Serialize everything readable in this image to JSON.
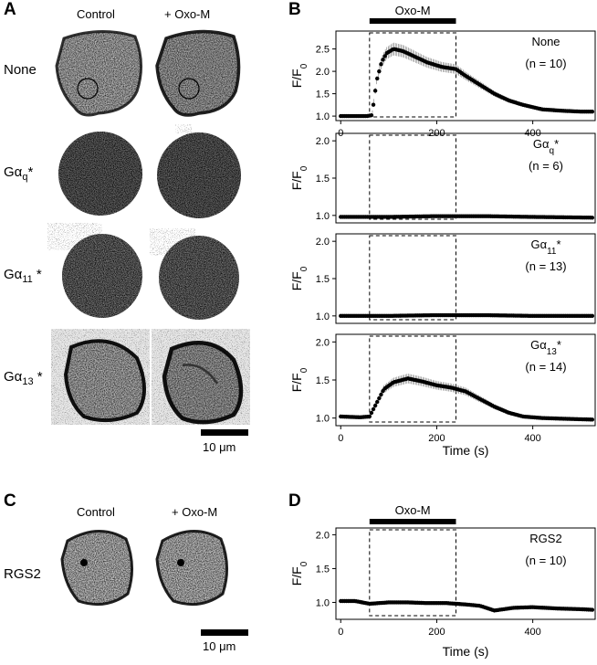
{
  "panels": {
    "A": {
      "letter": "A",
      "columns": [
        "Control",
        "+ Oxo-M"
      ],
      "rows": [
        {
          "label_main": "None",
          "label_sub": ""
        },
        {
          "label_main": "Gα",
          "label_sub": "q",
          "label_star": "*"
        },
        {
          "label_main": "Gα",
          "label_sub": "11",
          "label_star": " *"
        },
        {
          "label_main": "Gα",
          "label_sub": "13",
          "label_star": " *"
        }
      ],
      "scale_label": "10 μm"
    },
    "B": {
      "letter": "B",
      "stim_label": "Oxo-M",
      "ylabel": "F/F",
      "ylabel_sub": "0",
      "xlabel": "Time (s)"
    },
    "C": {
      "letter": "C",
      "columns": [
        "Control",
        "+ Oxo-M"
      ],
      "row_label": "RGS2",
      "scale_label": "10 μm"
    },
    "D": {
      "letter": "D",
      "stim_label": "Oxo-M",
      "ylabel": "F/F",
      "ylabel_sub": "0",
      "xlabel": "Time (s)"
    }
  },
  "chart_data": [
    {
      "type": "scatter",
      "panel": "B",
      "annotation": "None",
      "n_label": "(n = 10)",
      "ylim": [
        0.9,
        2.9
      ],
      "yticks": [
        1.0,
        1.5,
        2.0,
        2.5
      ],
      "xlim": [
        -10,
        530
      ],
      "xticks": [
        0,
        200,
        400
      ],
      "stim": [
        60,
        240
      ],
      "points": [
        [
          0,
          1.0
        ],
        [
          30,
          1.0
        ],
        [
          55,
          1.0
        ],
        [
          65,
          1.02
        ],
        [
          75,
          1.8
        ],
        [
          85,
          2.2
        ],
        [
          95,
          2.4
        ],
        [
          110,
          2.5
        ],
        [
          130,
          2.45
        ],
        [
          150,
          2.35
        ],
        [
          180,
          2.2
        ],
        [
          210,
          2.1
        ],
        [
          240,
          2.05
        ],
        [
          260,
          1.9
        ],
        [
          290,
          1.7
        ],
        [
          320,
          1.5
        ],
        [
          350,
          1.35
        ],
        [
          380,
          1.25
        ],
        [
          420,
          1.15
        ],
        [
          460,
          1.12
        ],
        [
          500,
          1.1
        ],
        [
          525,
          1.1
        ]
      ]
    },
    {
      "type": "scatter",
      "panel": "B",
      "annotation": "Gα",
      "annotation_sub": "q",
      "annotation_star": "*",
      "n_label": "(n = 6)",
      "ylim": [
        0.9,
        2.1
      ],
      "yticks": [
        1.0,
        1.5,
        2.0
      ],
      "xlim": [
        -10,
        530
      ],
      "stim": [
        60,
        240
      ],
      "points": [
        [
          0,
          0.98
        ],
        [
          100,
          0.98
        ],
        [
          200,
          0.99
        ],
        [
          300,
          0.99
        ],
        [
          400,
          0.98
        ],
        [
          525,
          0.97
        ]
      ]
    },
    {
      "type": "scatter",
      "panel": "B",
      "annotation": "Gα",
      "annotation_sub": "11",
      "annotation_star": "*",
      "n_label": "(n = 13)",
      "ylim": [
        0.9,
        2.1
      ],
      "yticks": [
        1.0,
        1.5,
        2.0
      ],
      "xlim": [
        -10,
        530
      ],
      "stim": [
        60,
        240
      ],
      "points": [
        [
          0,
          1.0
        ],
        [
          100,
          1.0
        ],
        [
          200,
          1.01
        ],
        [
          300,
          1.01
        ],
        [
          400,
          1.0
        ],
        [
          525,
          1.0
        ]
      ]
    },
    {
      "type": "scatter",
      "panel": "B",
      "annotation": "Gα",
      "annotation_sub": "13",
      "annotation_star": "*",
      "n_label": "(n = 14)",
      "ylim": [
        0.9,
        2.1
      ],
      "yticks": [
        1.0,
        1.5,
        2.0
      ],
      "xlim": [
        -10,
        530
      ],
      "xticks": [
        0,
        200,
        400
      ],
      "stim": [
        60,
        240
      ],
      "points": [
        [
          0,
          1.02
        ],
        [
          40,
          1.01
        ],
        [
          60,
          1.02
        ],
        [
          75,
          1.2
        ],
        [
          90,
          1.38
        ],
        [
          110,
          1.47
        ],
        [
          140,
          1.52
        ],
        [
          170,
          1.48
        ],
        [
          200,
          1.43
        ],
        [
          230,
          1.4
        ],
        [
          260,
          1.35
        ],
        [
          290,
          1.25
        ],
        [
          320,
          1.15
        ],
        [
          350,
          1.07
        ],
        [
          380,
          1.02
        ],
        [
          420,
          1.0
        ],
        [
          470,
          0.99
        ],
        [
          525,
          0.98
        ]
      ]
    },
    {
      "type": "scatter",
      "panel": "D",
      "annotation": "RGS2",
      "n_label": "(n = 10)",
      "ylim": [
        0.75,
        2.1
      ],
      "yticks": [
        1.0,
        1.5,
        2.0
      ],
      "xlim": [
        -10,
        530
      ],
      "xticks": [
        0,
        200,
        400
      ],
      "stim": [
        60,
        240
      ],
      "points": [
        [
          0,
          1.02
        ],
        [
          30,
          1.02
        ],
        [
          60,
          0.98
        ],
        [
          100,
          1.0
        ],
        [
          140,
          1.0
        ],
        [
          180,
          0.99
        ],
        [
          220,
          0.99
        ],
        [
          260,
          0.97
        ],
        [
          290,
          0.95
        ],
        [
          320,
          0.88
        ],
        [
          360,
          0.92
        ],
        [
          400,
          0.93
        ],
        [
          450,
          0.91
        ],
        [
          500,
          0.9
        ],
        [
          525,
          0.89
        ]
      ]
    }
  ]
}
